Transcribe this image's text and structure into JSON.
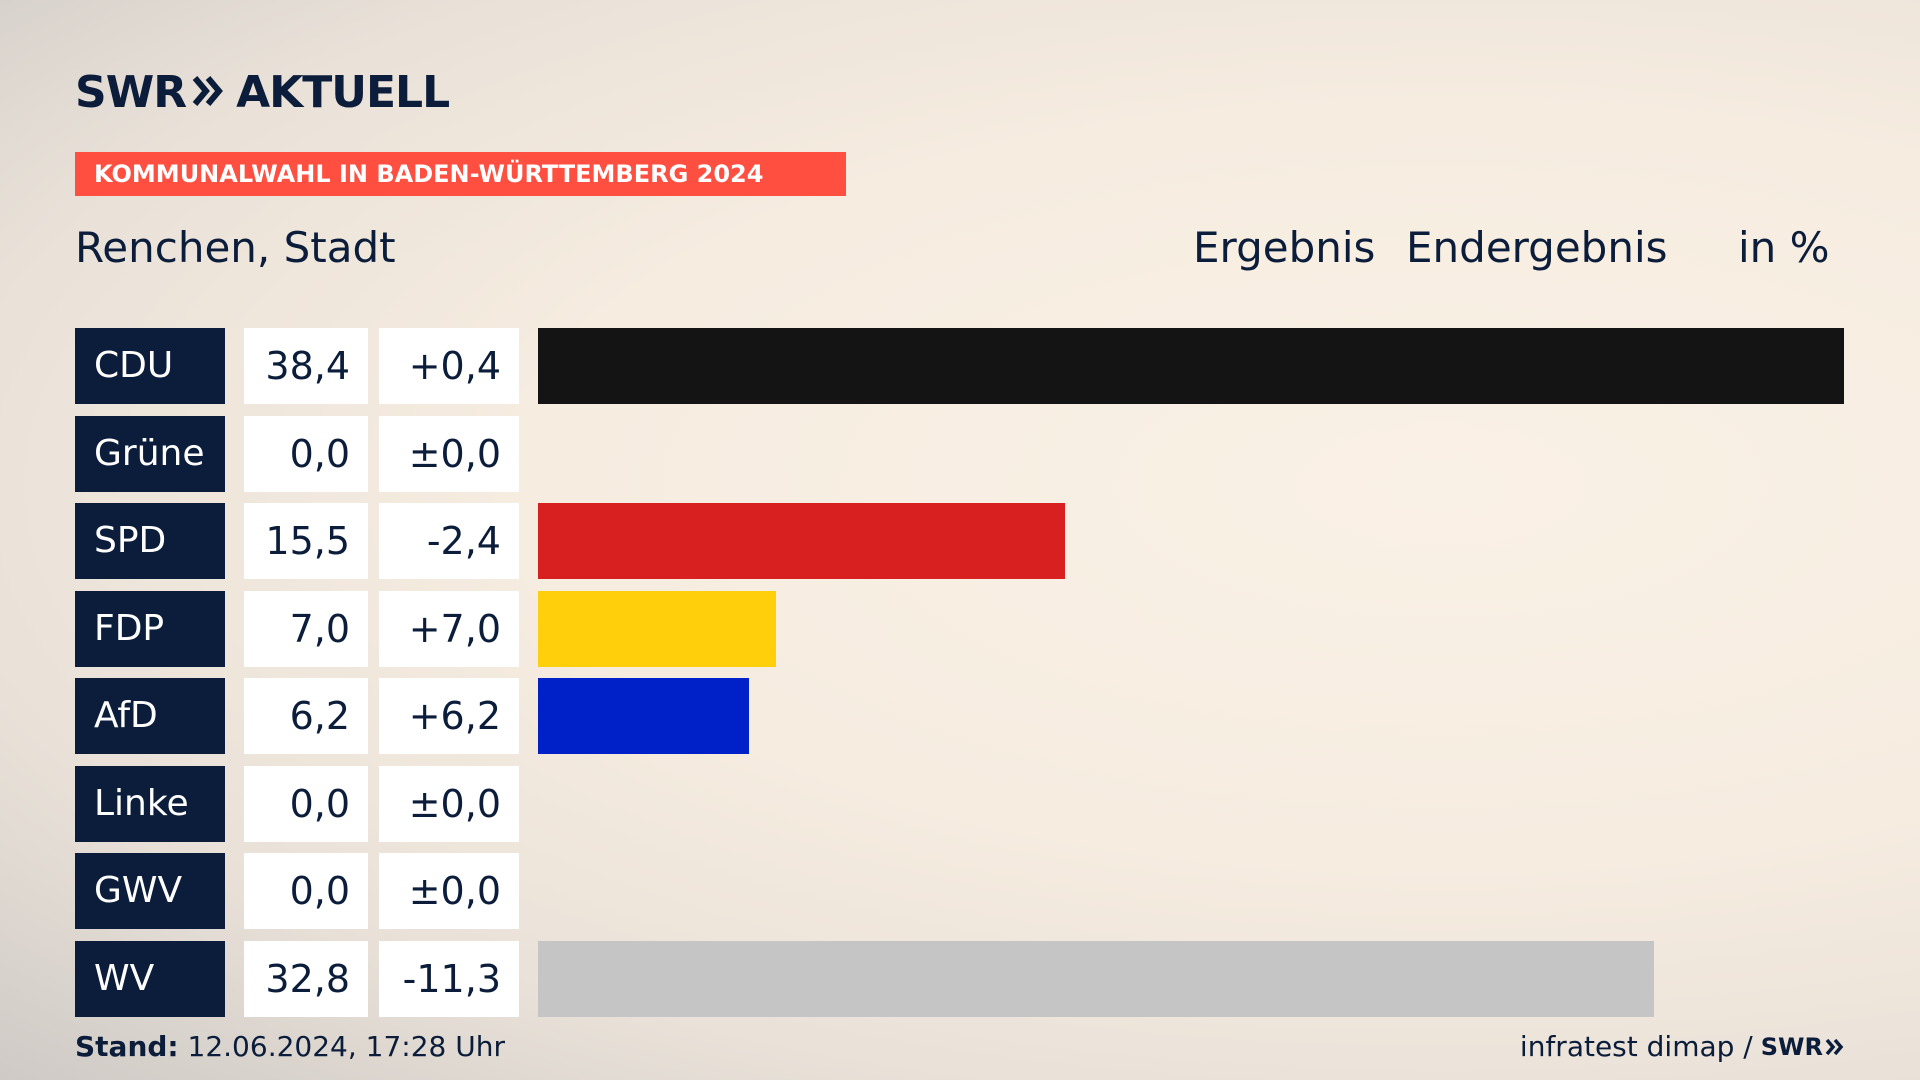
{
  "header": {
    "logo_text_left": "SWR",
    "logo_text_right": "AKTUELL",
    "banner": "KOMMUNALWAHL IN BADEN-WÜRTTEMBERG 2024",
    "subtitle": "Renchen, Stadt",
    "col_ergebnis": "Ergebnis",
    "col_endergebnis": "Endergebnis",
    "col_unit": "in %"
  },
  "colors": {
    "navy": "#0b1d3a",
    "banner": "#ff4f41"
  },
  "chart_data": {
    "type": "bar",
    "orientation": "horizontal",
    "categories": [
      "CDU",
      "Grüne",
      "SPD",
      "FDP",
      "AfD",
      "Linke",
      "GWV",
      "WV"
    ],
    "values": [
      38.4,
      0.0,
      15.5,
      7.0,
      6.2,
      0.0,
      0.0,
      32.8
    ],
    "value_labels": [
      "38,4",
      "0,0",
      "15,5",
      "7,0",
      "6,2",
      "0,0",
      "0,0",
      "32,8"
    ],
    "diff_labels": [
      "+0,4",
      "±0,0",
      "-2,4",
      "+7,0",
      "+6,2",
      "±0,0",
      "±0,0",
      "-11,3"
    ],
    "bar_colors": [
      "#141414",
      "#46962b",
      "#d7201f",
      "#ffcf0b",
      "#0020c8",
      "#be3075",
      "#9a9a9a",
      "#c5c5c5"
    ],
    "xlim": [
      0,
      38.4
    ]
  },
  "footer": {
    "stand_label": "Stand:",
    "stand_value": "12.06.2024, 17:28 Uhr",
    "source": "infratest dimap /",
    "source_logo": "SWR"
  }
}
